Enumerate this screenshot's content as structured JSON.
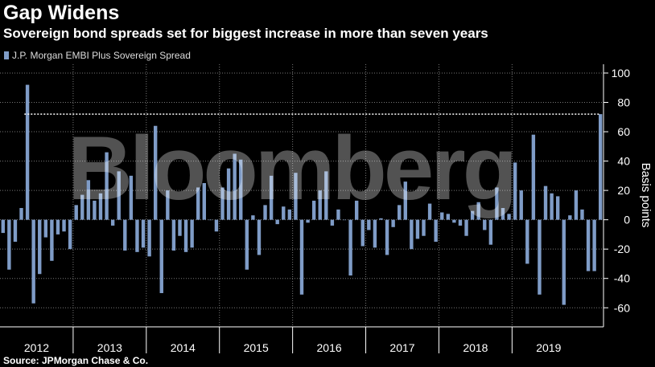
{
  "header": {
    "title": "Gap Widens",
    "subtitle": "Sovereign bond spreads set for biggest increase in more than seven years"
  },
  "footer": {
    "source": "Source: JPMorgan Chase & Co."
  },
  "watermark": "Bloomberg",
  "colors": {
    "bar": "#7f9cc7",
    "background": "#000000",
    "grid": "#777777",
    "reference": "#ffffff"
  },
  "chart_data": {
    "type": "bar",
    "ylabel": "Basis points",
    "ylim": [
      -73,
      106
    ],
    "yticks": [
      100,
      80,
      60,
      40,
      20,
      0,
      -20,
      -40,
      -60
    ],
    "grid": true,
    "legend_position": "top-left",
    "reference_line": {
      "value": 72
    },
    "year_labels": [
      "2012",
      "2013",
      "2014",
      "2015",
      "2016",
      "2017",
      "2018",
      "2019"
    ],
    "series": [
      {
        "name": "J.P. Morgan EMBI Plus Sovereign Spread",
        "values": [
          -9,
          -34,
          -15,
          8,
          92,
          -57,
          -37,
          -12,
          -28,
          -10,
          -8,
          -20,
          10,
          17,
          27,
          13,
          18,
          46,
          -4,
          33,
          -21,
          30,
          -22,
          -19,
          -25,
          64,
          -50,
          20,
          -21,
          -11,
          -22,
          -19,
          22,
          25,
          0,
          -8,
          22,
          35,
          45,
          41,
          -34,
          3,
          -24,
          10,
          30,
          -3,
          9,
          7,
          32,
          -51,
          -2,
          13,
          20,
          33,
          -4,
          7,
          0,
          -38,
          13,
          -18,
          -7,
          -19,
          1,
          -24,
          -5,
          10,
          26,
          -20,
          -13,
          -11,
          11,
          -15,
          5,
          4,
          -2,
          -4,
          -11,
          6,
          12,
          -7,
          -17,
          22,
          8,
          4,
          39,
          20,
          -30,
          58,
          -51,
          23,
          18,
          16,
          -58,
          3,
          20,
          7,
          -35,
          -35,
          72
        ]
      }
    ]
  }
}
